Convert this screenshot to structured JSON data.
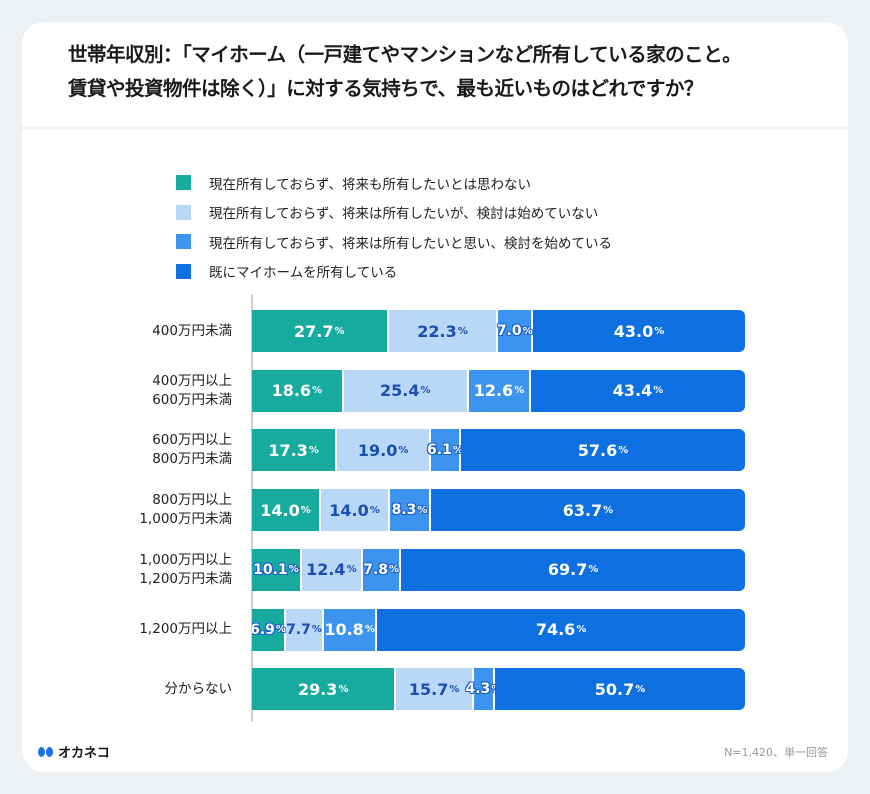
{
  "title_lines": [
    "世帯年収別：「マイホーム（一戸建てやマンションなど所有している家のこと。",
    "賃貸や投資物件は除く）」に対する気持ちで、最も近いものはどれですか？"
  ],
  "chart_data": {
    "type": "bar",
    "orientation": "horizontal",
    "stacked": true,
    "percent_suffix": "%",
    "xlim": [
      0,
      100
    ],
    "legend_position": "top",
    "categories": [
      [
        "400万円未満"
      ],
      [
        "400万円以上",
        "600万円未満"
      ],
      [
        "600万円以上",
        "800万円未満"
      ],
      [
        "800万円以上",
        "1,000万円未満"
      ],
      [
        "1,000万円以上",
        "1,200万円未満"
      ],
      [
        "1,200万円以上"
      ],
      [
        "分からない"
      ]
    ],
    "series": [
      {
        "name": "現在所有しておらず、将来も所有したいとは思わない",
        "color": "#17aa9f",
        "text_color": "#ffffff",
        "values": [
          27.7,
          18.6,
          17.3,
          14.0,
          10.1,
          6.9,
          29.3
        ]
      },
      {
        "name": "現在所有しておらず、将来は所有したいが、検討は始めていない",
        "color": "#b9d7f7",
        "text_color": "#1a4fb0",
        "values": [
          22.3,
          25.4,
          19.0,
          14.0,
          12.4,
          7.7,
          15.7
        ]
      },
      {
        "name": "現在所有しておらず、将来は所有したいと思い、検討を始めている",
        "color": "#3d94ef",
        "text_color": "#ffffff",
        "values": [
          7.0,
          12.6,
          6.1,
          8.3,
          7.8,
          10.8,
          4.3
        ]
      },
      {
        "name": "既にマイホームを所有している",
        "color": "#0e6fe0",
        "text_color": "#ffffff",
        "values": [
          43.0,
          43.4,
          57.6,
          63.7,
          69.7,
          74.6,
          50.7
        ]
      }
    ]
  },
  "footer": {
    "logo": "オカネコ",
    "note": "N=1,420、単一回答"
  }
}
